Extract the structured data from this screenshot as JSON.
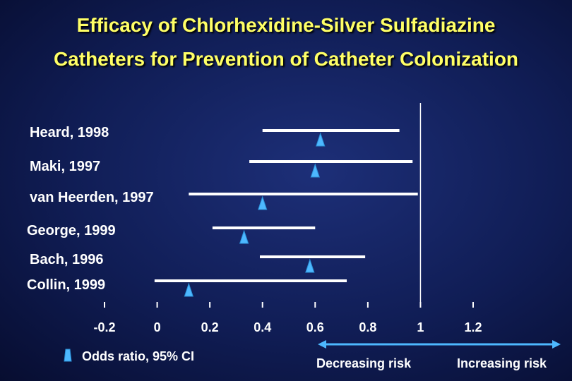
{
  "title_line1": "Efficacy of Chlorhexidine-Silver Sulfadiazine",
  "title_line2": "Catheters for Prevention of Catheter Colonization",
  "legend": {
    "marker_label": "Odds ratio, 95% CI",
    "marker_color": "#4db8ff"
  },
  "risk_labels": {
    "decreasing": "Decreasing risk",
    "increasing": "Increasing risk",
    "arrow_color": "#4db8ff"
  },
  "colors": {
    "ci_line": "#ffffff",
    "marker": "#4db8ff",
    "reference_line": "#ffffff"
  },
  "chart_data": {
    "type": "forest",
    "title": "Efficacy of Chlorhexidine-Silver Sulfadiazine Catheters for Prevention of Catheter Colonization",
    "xlim": [
      -0.2,
      1.2
    ],
    "xticks": [
      -0.2,
      0,
      0.2,
      0.4,
      0.6,
      0.8,
      1,
      1.2
    ],
    "xtick_labels": [
      "-0.2",
      "0",
      "0.2",
      "0.4",
      "0.6",
      "0.8",
      "1",
      "1.2"
    ],
    "reference_value": 1,
    "studies": [
      {
        "label": "Heard, 1998",
        "or": 0.62,
        "ci_low": 0.4,
        "ci_high": 0.92
      },
      {
        "label": "Maki, 1997",
        "or": 0.6,
        "ci_low": 0.35,
        "ci_high": 0.97
      },
      {
        "label": "van Heerden, 1997",
        "or": 0.4,
        "ci_low": 0.12,
        "ci_high": 0.99
      },
      {
        "label": "George, 1999",
        "or": 0.33,
        "ci_low": 0.21,
        "ci_high": 0.6
      },
      {
        "label": "Bach, 1996",
        "or": 0.58,
        "ci_low": 0.39,
        "ci_high": 0.79
      },
      {
        "label": "Collin, 1999",
        "or": 0.12,
        "ci_low": -0.01,
        "ci_high": 0.72
      }
    ],
    "grid": false
  }
}
